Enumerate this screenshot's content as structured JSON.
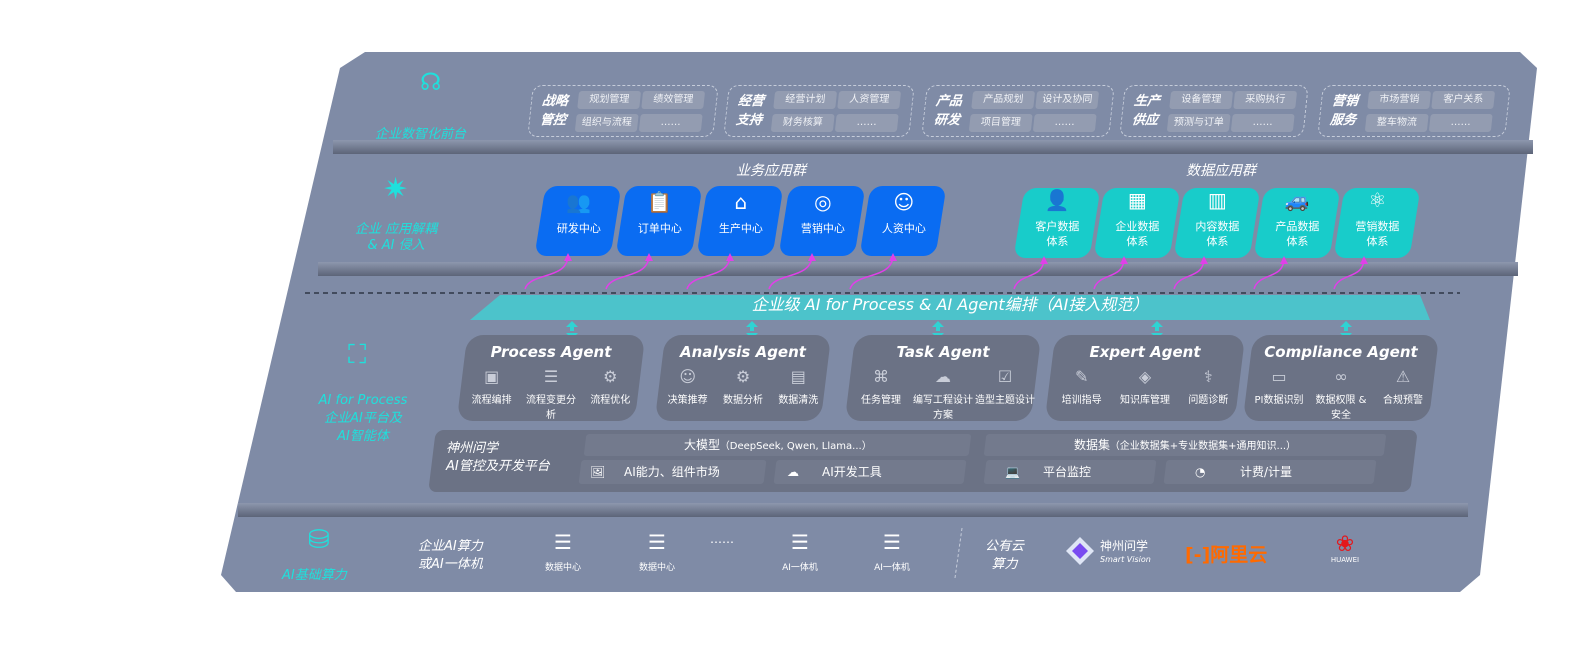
{
  "colors": {
    "panel": "#7f8ba6",
    "accent_cyan": "#1fe0dc",
    "business_blue": "#0a6cf2",
    "data_teal": "#18ccca",
    "arrow_magenta": "#e040e8"
  },
  "layers": {
    "front": {
      "label": "企业数智化前台",
      "icon": "brain-icon"
    },
    "apps": {
      "label_line1": "企业 应用解耦",
      "label_line2": "& AI 侵入",
      "icon": "molecule-icon"
    },
    "ai": {
      "label_en": "AI for Process",
      "label_line1": "企业AI平台及",
      "label_line2": "AI智能体",
      "icon": "face-scan-icon"
    },
    "compute": {
      "label": "AI基础算力",
      "icon": "database-icon"
    }
  },
  "front_groups": [
    {
      "label1": "战略",
      "label2": "管控",
      "chips": [
        "规划管理",
        "绩效管理",
        "组织与流程",
        "……"
      ]
    },
    {
      "label1": "经营",
      "label2": "支持",
      "chips": [
        "经营计划",
        "人资管理",
        "财务核算",
        "……"
      ]
    },
    {
      "label1": "产品",
      "label2": "研发",
      "chips": [
        "产品规划",
        "设计及协同",
        "项目管理",
        "……"
      ]
    },
    {
      "label1": "生产",
      "label2": "供应",
      "chips": [
        "设备管理",
        "采购执行",
        "预测与订单",
        "……"
      ]
    },
    {
      "label1": "营销",
      "label2": "服务",
      "chips": [
        "市场营销",
        "客户关系",
        "整车物流",
        "……"
      ]
    }
  ],
  "business_apps": {
    "title": "业务应用群",
    "items": [
      {
        "label": "研发中心",
        "icon": "team-icon"
      },
      {
        "label": "订单中心",
        "icon": "clipboard-icon"
      },
      {
        "label": "生产中心",
        "icon": "factory-icon"
      },
      {
        "label": "营销中心",
        "icon": "target-icon"
      },
      {
        "label": "人资中心",
        "icon": "person-icon"
      }
    ]
  },
  "data_apps": {
    "title": "数据应用群",
    "items": [
      {
        "line1": "客户数据",
        "line2": "体系",
        "icon": "user-icon"
      },
      {
        "line1": "企业数据",
        "line2": "体系",
        "icon": "building-icon"
      },
      {
        "line1": "内容数据",
        "line2": "体系",
        "icon": "books-icon"
      },
      {
        "line1": "产品数据",
        "line2": "体系",
        "icon": "car-icon"
      },
      {
        "line1": "营销数据",
        "line2": "体系",
        "icon": "atom-icon"
      }
    ]
  },
  "banner": "企业级 AI for Process & AI Agent编排（AI接入规范）",
  "agents": [
    {
      "name": "Process Agent",
      "items": [
        {
          "label": "流程编排",
          "icon": "workflow-icon"
        },
        {
          "label": "流程变更分析",
          "icon": "list-icon"
        },
        {
          "label": "流程优化",
          "icon": "optimize-icon"
        }
      ]
    },
    {
      "name": "Analysis Agent",
      "items": [
        {
          "label": "决策推荐",
          "icon": "head-icon"
        },
        {
          "label": "数据分析",
          "icon": "gear-icon"
        },
        {
          "label": "数据清洗",
          "icon": "document-icon"
        }
      ]
    },
    {
      "name": "Task Agent",
      "items": [
        {
          "label": "任务管理",
          "icon": "network-icon"
        },
        {
          "label": "编写工程设计方案",
          "icon": "cloud-icon"
        },
        {
          "label": "造型主题设计",
          "icon": "checklist-icon"
        }
      ]
    },
    {
      "name": "Expert Agent",
      "items": [
        {
          "label": "培训指导",
          "icon": "pencil-icon"
        },
        {
          "label": "知识库管理",
          "icon": "layers-icon"
        },
        {
          "label": "问题诊断",
          "icon": "diagnose-icon"
        }
      ]
    },
    {
      "name": "Compliance Agent",
      "items": [
        {
          "label": "PI数据识别",
          "icon": "id-card-icon"
        },
        {
          "label": "数据权限 & 安全",
          "icon": "link-icon"
        },
        {
          "label": "合规预警",
          "icon": "alert-icon"
        }
      ]
    }
  ],
  "platform": {
    "title1": "神州问学",
    "title2": "AI管控及开发平台",
    "model": "大模型",
    "model_note": "（DeepSeek, Qwen, Llama...）",
    "dataset": "数据集",
    "dataset_note": "（企业数据集+专业数据集+通用知识...）",
    "market": "AI能力、组件市场",
    "devtools": "AI开发工具",
    "monitor": "平台监控",
    "billing": "计费/计量"
  },
  "compute": {
    "private1": "企业AI算力",
    "private2": "或AI一体机",
    "servers": [
      "数据中心",
      "数据中心",
      "AI一体机",
      "AI一体机"
    ],
    "ellipsis": "……",
    "public1": "公有云",
    "public2": "算力",
    "vendors": {
      "smartvision_cn": "神州问学",
      "smartvision_en": "Smart Vision",
      "aliyun": "阿里云",
      "huawei": "HUAWEI"
    }
  }
}
